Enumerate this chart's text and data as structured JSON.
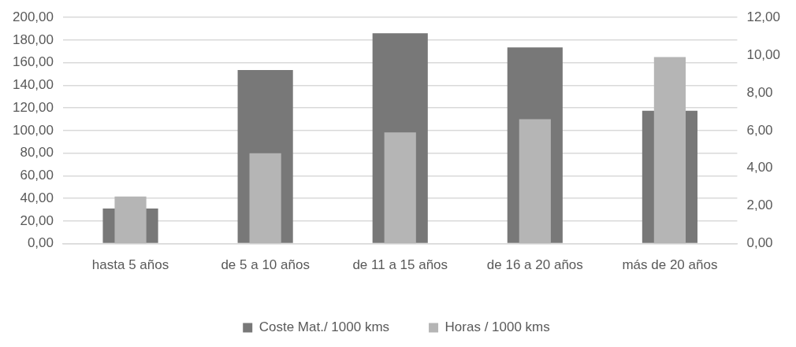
{
  "chart_data": {
    "type": "bar",
    "categories": [
      "hasta 5 años",
      "de 5 a 10 años",
      "de 11 a 15 años",
      "de 16 a 20 años",
      "más de 20 años"
    ],
    "series": [
      {
        "name": "Coste Mat./ 1000 kms",
        "color": "#787878",
        "values": [
          31,
          153.5,
          186,
          173.5,
          117.5
        ]
      },
      {
        "name": "Horas / 1000 kms",
        "color": "#b5b5b5",
        "axis": "y2",
        "values": [
          2.5,
          4.8,
          5.9,
          6.6,
          9.9
        ]
      }
    ],
    "ylim": [
      0,
      200
    ],
    "yticks": [
      {
        "value": 0,
        "label": "0,00"
      },
      {
        "value": 20,
        "label": "20,00"
      },
      {
        "value": 40,
        "label": "40,00"
      },
      {
        "value": 60,
        "label": "60,00"
      },
      {
        "value": 80,
        "label": "80,00"
      },
      {
        "value": 100,
        "label": "100,00"
      },
      {
        "value": 120,
        "label": "120,00"
      },
      {
        "value": 140,
        "label": "140,00"
      },
      {
        "value": 160,
        "label": "160,00"
      },
      {
        "value": 180,
        "label": "180,00"
      },
      {
        "value": 200,
        "label": "200,00"
      }
    ],
    "y2lim": [
      0,
      12
    ],
    "y2ticks": [
      {
        "value": 0,
        "label": "0,00"
      },
      {
        "value": 2,
        "label": "2,00"
      },
      {
        "value": 4,
        "label": "4,00"
      },
      {
        "value": 6,
        "label": "6,00"
      },
      {
        "value": 8,
        "label": "8,00"
      },
      {
        "value": 10,
        "label": "10,00"
      },
      {
        "value": 12,
        "label": "12,00"
      }
    ],
    "grid": "y",
    "legend": "bottom"
  }
}
